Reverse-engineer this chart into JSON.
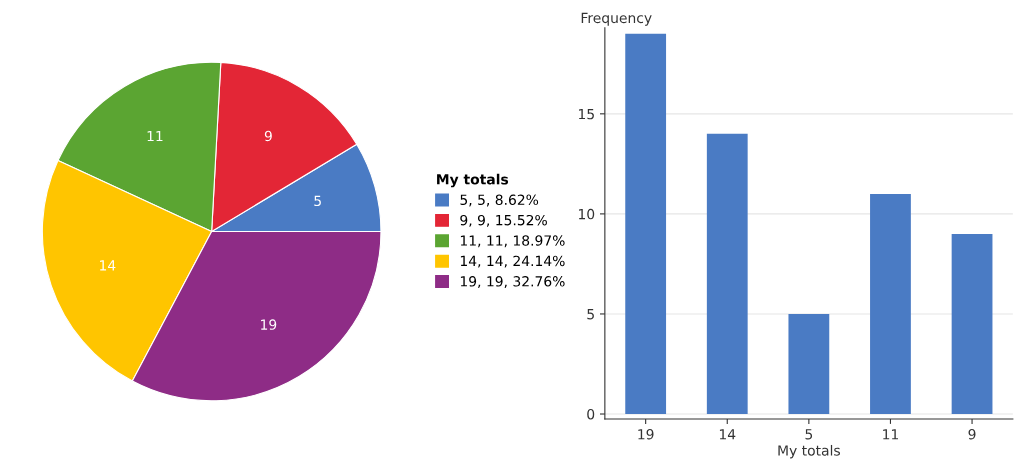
{
  "chart_data": [
    {
      "type": "pie",
      "legend_title": "My totals",
      "categories": [
        "5, 5, 8.62%",
        "9, 9, 15.52%",
        "11, 11, 18.97%",
        "14, 14, 24.14%",
        "19, 19, 32.76%"
      ],
      "values": [
        5,
        9,
        11,
        14,
        19
      ],
      "colors": [
        "#4a7bc4",
        "#e32636",
        "#5ba532",
        "#ffc500",
        "#8e2c86"
      ],
      "data_labels": true,
      "legend": "right"
    },
    {
      "type": "bar",
      "categories": [
        "19",
        "14",
        "5",
        "11",
        "9"
      ],
      "values": [
        19,
        14,
        5,
        11,
        9
      ],
      "color": "#4a7bc4",
      "xlabel": "My totals",
      "ylabel": "Frequency",
      "ylim": [
        -0.25,
        19.3
      ],
      "yticks": [
        0,
        5,
        10,
        15
      ],
      "grid": "y"
    }
  ]
}
